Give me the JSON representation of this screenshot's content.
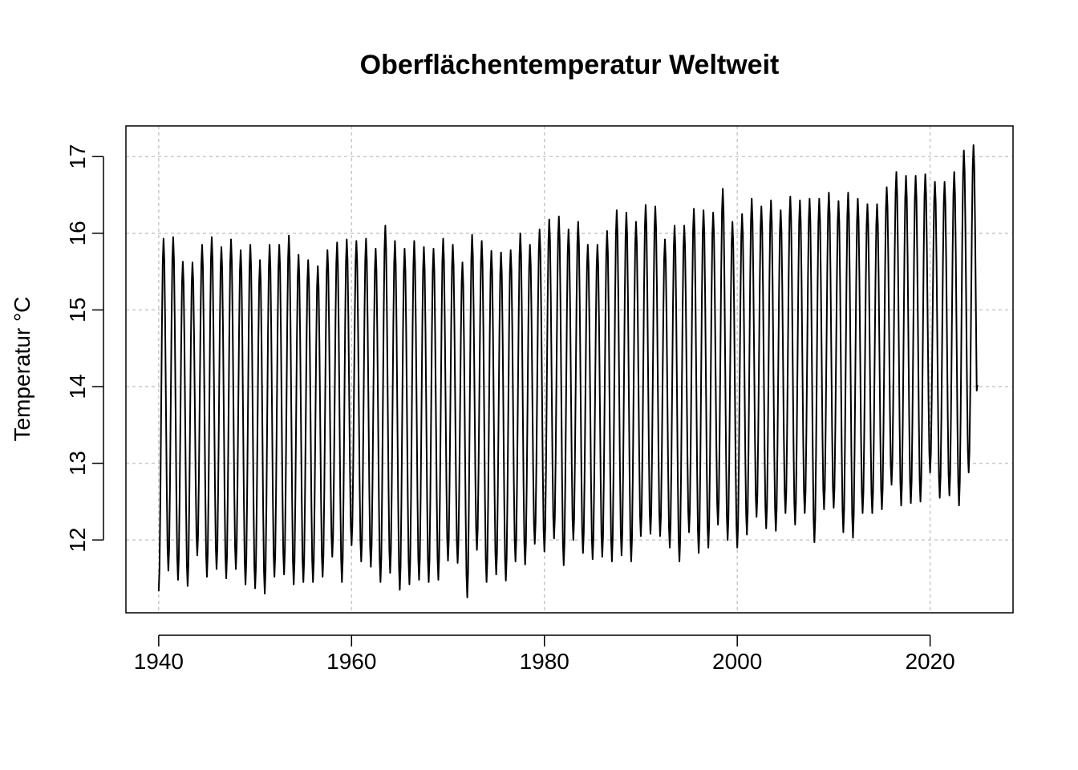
{
  "chart_data": {
    "type": "line",
    "title": "Oberflächentemperatur Weltweit",
    "xlabel": "",
    "ylabel": "Temperatur °C",
    "x_ticks": [
      "1940",
      "1960",
      "1980",
      "2000",
      "2020"
    ],
    "y_ticks": [
      "12",
      "13",
      "14",
      "15",
      "16",
      "17"
    ],
    "xlim": [
      1936.6,
      2028.6
    ],
    "ylim": [
      11.05,
      17.4
    ],
    "grid": true,
    "frequency": "monthly",
    "start": "1940-01",
    "end": "2024-12",
    "annual_peaks": [
      15.93,
      15.95,
      15.63,
      15.62,
      15.85,
      15.95,
      15.82,
      15.92,
      15.78,
      15.85,
      15.65,
      15.85,
      15.85,
      15.97,
      15.72,
      15.65,
      15.57,
      15.78,
      15.88,
      15.92,
      15.9,
      15.93,
      15.8,
      16.1,
      15.9,
      15.8,
      15.9,
      15.82,
      15.8,
      15.93,
      15.85,
      15.62,
      15.98,
      15.9,
      15.77,
      15.75,
      15.78,
      16.0,
      15.85,
      16.05,
      16.18,
      16.22,
      16.05,
      16.15,
      15.85,
      15.85,
      16.03,
      16.3,
      16.27,
      16.15,
      16.37,
      16.35,
      15.92,
      16.1,
      16.1,
      16.32,
      16.3,
      16.27,
      16.58,
      16.15,
      16.25,
      16.45,
      16.35,
      16.43,
      16.3,
      16.48,
      16.43,
      16.45,
      16.45,
      16.53,
      16.42,
      16.53,
      16.45,
      16.38,
      16.38,
      16.6,
      16.8,
      16.75,
      16.75,
      16.77,
      16.67,
      16.67,
      16.8,
      17.08,
      17.15
    ],
    "annual_troughs": [
      11.33,
      11.6,
      11.48,
      11.4,
      11.8,
      11.52,
      11.62,
      11.5,
      11.62,
      11.42,
      11.37,
      11.3,
      11.52,
      11.55,
      11.42,
      11.45,
      11.45,
      11.52,
      11.78,
      11.45,
      11.93,
      11.72,
      11.65,
      11.45,
      11.57,
      11.35,
      11.42,
      11.48,
      11.45,
      11.48,
      11.73,
      11.7,
      11.25,
      11.87,
      11.45,
      11.55,
      11.47,
      11.72,
      11.68,
      11.95,
      11.85,
      12.02,
      11.67,
      12.0,
      11.83,
      11.75,
      11.78,
      11.72,
      11.8,
      11.72,
      12.05,
      12.08,
      12.05,
      11.9,
      11.72,
      12.1,
      11.83,
      11.9,
      12.2,
      12.0,
      11.9,
      12.07,
      12.3,
      12.15,
      12.12,
      12.35,
      12.2,
      12.35,
      11.97,
      12.4,
      12.42,
      12.1,
      12.03,
      12.35,
      12.35,
      12.4,
      12.72,
      12.45,
      12.48,
      12.5,
      12.88,
      12.55,
      12.58,
      12.45,
      12.88
    ],
    "final_value": 14.02
  }
}
